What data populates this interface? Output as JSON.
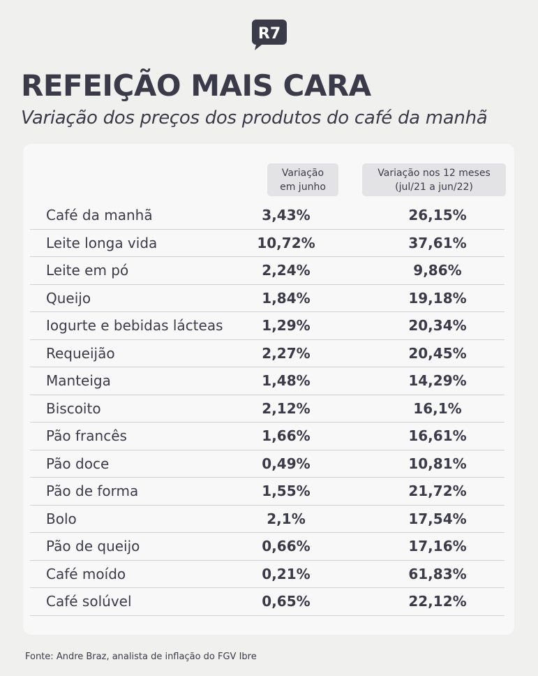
{
  "brand": {
    "logo_text": "R7",
    "logo_color": "#3b3a48"
  },
  "title": "REFEIÇÃO MAIS CARA",
  "subtitle": "Variação dos preços dos produtos do café da manhã",
  "source": "Fonte: Andre Braz, analista de inflação do FGV Ibre",
  "chart_data": {
    "type": "table",
    "columns": [
      {
        "lines": [
          "Variação",
          "em junho"
        ]
      },
      {
        "lines": [
          "Variação nos 12 meses",
          "(jul/21 a jun/22)"
        ]
      }
    ],
    "rows": [
      {
        "label": "Café da manhã",
        "june": "3,43%",
        "twelve_months": "26,15%"
      },
      {
        "label": "Leite longa vida",
        "june": "10,72%",
        "twelve_months": "37,61%"
      },
      {
        "label": "Leite em pó",
        "june": "2,24%",
        "twelve_months": "9,86%"
      },
      {
        "label": "Queijo",
        "june": "1,84%",
        "twelve_months": "19,18%"
      },
      {
        "label": "Iogurte e bebidas lácteas",
        "june": "1,29%",
        "twelve_months": "20,34%"
      },
      {
        "label": "Requeijão",
        "june": "2,27%",
        "twelve_months": "20,45%"
      },
      {
        "label": "Manteiga",
        "june": "1,48%",
        "twelve_months": "14,29%"
      },
      {
        "label": "Biscoito",
        "june": "2,12%",
        "twelve_months": "16,1%"
      },
      {
        "label": "Pão francês",
        "june": "1,66%",
        "twelve_months": "16,61%"
      },
      {
        "label": "Pão doce",
        "june": "0,49%",
        "twelve_months": "10,81%"
      },
      {
        "label": "Pão de forma",
        "june": "1,55%",
        "twelve_months": "21,72%"
      },
      {
        "label": "Bolo",
        "june": "2,1%",
        "twelve_months": "17,54%"
      },
      {
        "label": "Pão de queijo",
        "june": "0,66%",
        "twelve_months": "17,16%"
      },
      {
        "label": "Café moído",
        "june": "0,21%",
        "twelve_months": "61,83%"
      },
      {
        "label": "Café solúvel",
        "june": "0,65%",
        "twelve_months": "22,12%"
      }
    ]
  }
}
